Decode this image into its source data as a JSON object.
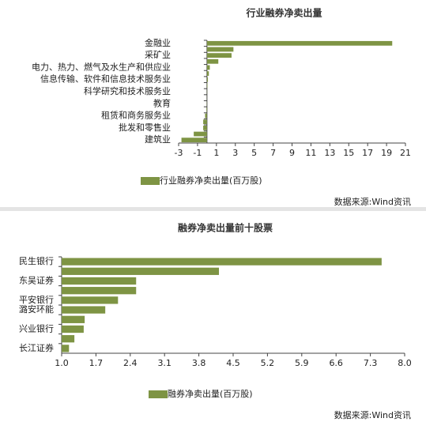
{
  "chart_data": [
    {
      "type": "hbar",
      "title": "行业融券净卖出量",
      "categories": [
        "金融业",
        null,
        "采矿业",
        null,
        "电力、热力、燃气及水生产和供应业",
        null,
        "信息传输、软件和信息技术服务业",
        null,
        "科学研究和技术服务业",
        null,
        "教育",
        null,
        "租赁和商务服务业",
        null,
        "批发和零售业",
        null,
        "建筑业"
      ],
      "series": [
        {
          "name": "行业融券净卖出量(百万股)",
          "color": "#7e9444",
          "values": [
            19.6,
            2.8,
            2.6,
            1.2,
            0.3,
            0.2,
            0.1,
            0.05,
            0.02,
            0.01,
            -0.02,
            -0.05,
            -0.2,
            -0.4,
            -0.4,
            -1.4,
            -2.7
          ]
        }
      ],
      "xlim": [
        -3,
        21
      ],
      "xticks": [
        -3,
        -1,
        1,
        3,
        5,
        7,
        9,
        11,
        13,
        15,
        17,
        19,
        21
      ],
      "source": "数据来源:Wind资讯"
    },
    {
      "type": "hbar",
      "title": "融券净卖出量前十股票",
      "categories": [
        "民生银行",
        null,
        "东吴证券",
        null,
        "平安银行",
        "潞安环能",
        null,
        "兴业银行",
        null,
        "长江证券"
      ],
      "series": [
        {
          "name": "融券净卖出量(百万股)",
          "color": "#7e9444",
          "values": [
            7.53,
            4.21,
            2.52,
            2.52,
            2.15,
            1.89,
            1.47,
            1.45,
            1.26,
            1.15
          ]
        }
      ],
      "xlim": [
        1.0,
        8.0
      ],
      "xticks": [
        {
          "value": 1.0,
          "label": "1.0"
        },
        {
          "value": 1.7,
          "label": "1.7"
        },
        {
          "value": 2.4,
          "label": "2.4"
        },
        {
          "value": 3.1,
          "label": "3.1"
        },
        {
          "value": 3.8,
          "label": "3.8"
        },
        {
          "value": 4.5,
          "label": "4.5"
        },
        {
          "value": 5.2,
          "label": "5.2"
        },
        {
          "value": 5.9,
          "label": "5.9"
        },
        {
          "value": 6.6,
          "label": "6.6"
        },
        {
          "value": 7.3,
          "label": "7.3"
        },
        {
          "value": 8.0,
          "label": "8.0"
        }
      ],
      "source": "数据来源:Wind资讯"
    }
  ]
}
